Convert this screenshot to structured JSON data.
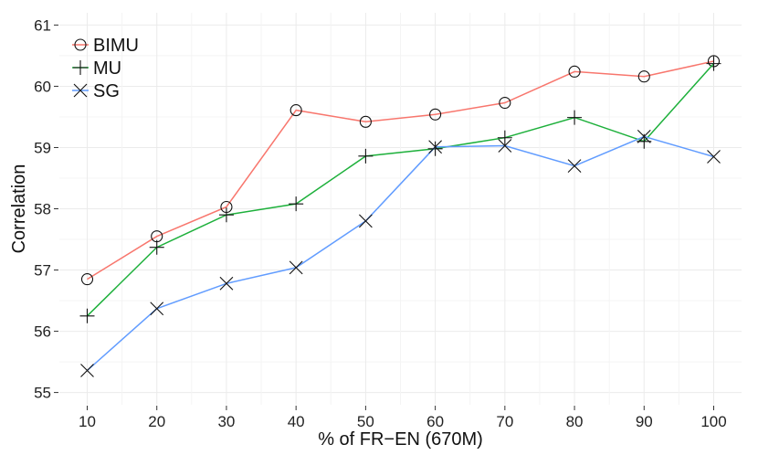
{
  "chart_data": {
    "type": "line",
    "xlabel": "% of FR−EN (670M)",
    "ylabel": "Correlation",
    "x": [
      10,
      20,
      30,
      40,
      50,
      60,
      70,
      80,
      90,
      100
    ],
    "xticks": [
      "10",
      "20",
      "30",
      "40",
      "50",
      "60",
      "70",
      "80",
      "90",
      "100"
    ],
    "yticks": [
      "55",
      "56",
      "57",
      "58",
      "59",
      "60",
      "61"
    ],
    "xlim": [
      6,
      104
    ],
    "ylim": [
      54.8,
      61.2
    ],
    "grid": true,
    "legend_position": "top-left",
    "series": [
      {
        "name": "BIMU",
        "marker": "circle",
        "color": "#f8766d",
        "values": [
          56.85,
          57.55,
          58.03,
          59.61,
          59.42,
          59.54,
          59.73,
          60.24,
          60.16,
          60.41
        ]
      },
      {
        "name": "MU",
        "marker": "plus",
        "color": "#1db03b",
        "values": [
          56.25,
          57.37,
          57.9,
          58.08,
          58.86,
          58.98,
          59.16,
          59.49,
          59.1,
          60.37
        ]
      },
      {
        "name": "SG",
        "marker": "cross",
        "color": "#619cff",
        "values": [
          55.36,
          56.37,
          56.78,
          57.04,
          57.8,
          59.01,
          59.03,
          58.7,
          59.18,
          58.85
        ]
      }
    ]
  }
}
